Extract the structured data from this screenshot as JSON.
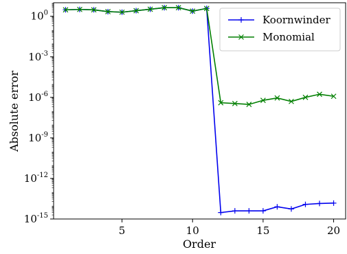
{
  "chart_data": {
    "type": "line",
    "xlabel": "Order",
    "ylabel": "Absolute error",
    "xlim": [
      0.15,
      20.85
    ],
    "ylim": [
      1e-15,
      10
    ],
    "yscale": "log",
    "x_ticks": [
      5,
      10,
      15,
      20
    ],
    "y_ticks": [
      {
        "value": 1,
        "base": "10",
        "exp": "0"
      },
      {
        "value": 0.001,
        "base": "10",
        "exp": "-3"
      },
      {
        "value": 1e-06,
        "base": "10",
        "exp": "-6"
      },
      {
        "value": 1e-09,
        "base": "10",
        "exp": "-9"
      },
      {
        "value": 1e-12,
        "base": "10",
        "exp": "-12"
      },
      {
        "value": 1e-15,
        "base": "10",
        "exp": "-15"
      }
    ],
    "grid": false,
    "legend_position": "top-right",
    "x": [
      1,
      2,
      3,
      4,
      5,
      6,
      7,
      8,
      9,
      10,
      11,
      12,
      13,
      14,
      15,
      16,
      17,
      18,
      19,
      20
    ],
    "series": [
      {
        "name": "Koornwinder",
        "color": "#0000ee",
        "marker": "plus",
        "values": [
          3.0,
          3.2,
          3.0,
          2.2,
          2.0,
          2.6,
          3.3,
          4.3,
          4.3,
          2.4,
          3.8,
          3e-15,
          4e-15,
          4e-15,
          4e-15,
          8e-15,
          5.5e-15,
          1.2e-14,
          1.4e-14,
          1.5e-14
        ]
      },
      {
        "name": "Monomial",
        "color": "#007f00",
        "marker": "x",
        "values": [
          3.0,
          3.2,
          3.0,
          2.2,
          2.0,
          2.6,
          3.3,
          4.3,
          4.3,
          2.4,
          3.8,
          4e-07,
          3.5e-07,
          3e-07,
          6e-07,
          9e-07,
          5e-07,
          1e-06,
          1.7e-06,
          1.2e-06
        ]
      }
    ]
  }
}
